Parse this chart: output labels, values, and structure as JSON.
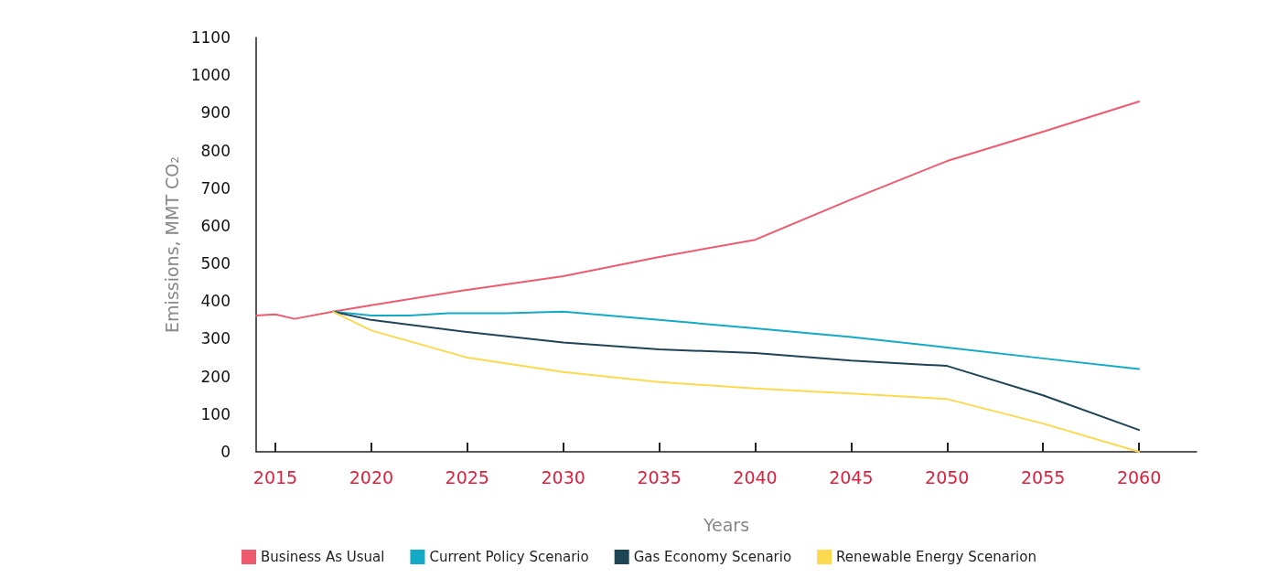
{
  "chart_data": {
    "type": "line",
    "xlabel": "Years",
    "ylabel": "Emissions, MMT CO₂",
    "xlim": [
      2014,
      2063
    ],
    "xticks": [
      2015,
      2020,
      2025,
      2030,
      2035,
      2040,
      2045,
      2050,
      2055,
      2060
    ],
    "ylim": [
      0,
      1100
    ],
    "yticks": [
      0,
      100,
      200,
      300,
      400,
      500,
      600,
      700,
      800,
      900,
      1000,
      1100
    ],
    "grid": false,
    "legend": "bottom",
    "marker": "none",
    "line_style": "solid",
    "series": [
      {
        "name": "Business As Usual",
        "color": "#ef5b6e",
        "x": [
          2014,
          2015,
          2016,
          2018,
          2020,
          2025,
          2030,
          2035,
          2040,
          2045,
          2050,
          2055,
          2060
        ],
        "values": [
          362,
          365,
          353,
          372,
          389,
          430,
          466,
          517,
          563,
          670,
          772,
          850,
          930
        ]
      },
      {
        "name": "Current Policy Scenario",
        "color": "#13aac8",
        "x": [
          2018,
          2020,
          2022,
          2024,
          2027,
          2030,
          2035,
          2040,
          2045,
          2050,
          2055,
          2060
        ],
        "values": [
          372,
          362,
          362,
          368,
          368,
          372,
          350,
          328,
          305,
          277,
          248,
          220
        ]
      },
      {
        "name": "Gas Economy Scenario",
        "color": "#1f4456",
        "x": [
          2018,
          2020,
          2025,
          2030,
          2035,
          2040,
          2045,
          2050,
          2055,
          2060
        ],
        "values": [
          372,
          350,
          318,
          290,
          272,
          262,
          242,
          228,
          150,
          58
        ]
      },
      {
        "name": "Renewable Energy Scenarion",
        "color": "#fdd94f",
        "x": [
          2018,
          2020,
          2025,
          2030,
          2035,
          2040,
          2045,
          2050,
          2055,
          2060
        ],
        "values": [
          372,
          322,
          250,
          212,
          185,
          168,
          155,
          140,
          75,
          0
        ]
      }
    ]
  }
}
